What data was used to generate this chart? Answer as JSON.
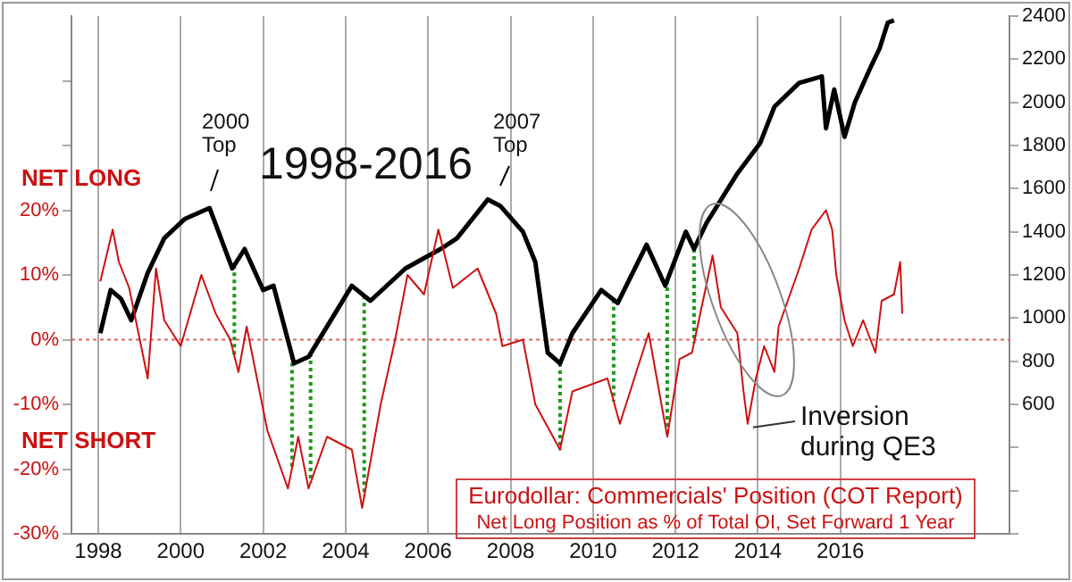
{
  "chart_data": {
    "type": "line",
    "title": "1998-2016",
    "annotations": [
      "2000 Top",
      "2007 Top",
      "NET LONG",
      "NET SHORT",
      {
        "text": "Inversion during QE3",
        "x": 2013.75,
        "y": -13
      },
      "Eurodollar: Commercials' Position (COT Report)",
      "Net Long Position as % of Total OI, Set Forward 1 Year"
    ],
    "xlim": [
      1997.35,
      2020.1
    ],
    "xticks": [
      1998,
      2000,
      2002,
      2004,
      2006,
      2008,
      2010,
      2012,
      2014,
      2016
    ],
    "ylim": [
      -30,
      50
    ],
    "yticks": [
      {
        "value": -30,
        "label": "-30%"
      },
      {
        "value": -20,
        "label": "-20%"
      },
      {
        "value": -10,
        "label": "-10%"
      },
      {
        "value": 0,
        "label": "0%"
      },
      {
        "value": 10,
        "label": "10%"
      },
      {
        "value": 20,
        "label": "20%"
      },
      {
        "value": 30,
        "label": null
      },
      {
        "value": 40,
        "label": null
      }
    ],
    "y2lim": [
      0,
      2400
    ],
    "y2ticks": [
      {
        "value": 0,
        "label": null
      },
      {
        "value": 200,
        "label": null
      },
      {
        "value": 400,
        "label": null
      },
      600,
      800,
      1000,
      1200,
      1400,
      1600,
      1800,
      2000,
      2200,
      2400
    ],
    "grid": "x",
    "legend": false,
    "marker": "none",
    "line_style": "solid",
    "ref_lines": [
      {
        "axis": "y",
        "value": 0,
        "color": "#e06060",
        "line_style": "dotted"
      },
      {
        "axis": "x",
        "value": 2001.3,
        "color": "#1a9a1a",
        "line_style": "dotted"
      },
      {
        "axis": "x",
        "value": 2002.7,
        "color": "#1a9a1a",
        "line_style": "dotted"
      },
      {
        "axis": "x",
        "value": 2003.15,
        "color": "#1a9a1a",
        "line_style": "dotted"
      },
      {
        "axis": "x",
        "value": 2004.45,
        "color": "#1a9a1a",
        "line_style": "dotted"
      },
      {
        "axis": "x",
        "value": 2009.2,
        "color": "#1a9a1a",
        "line_style": "dotted"
      },
      {
        "axis": "x",
        "value": 2010.5,
        "color": "#1a9a1a",
        "line_style": "dotted"
      },
      {
        "axis": "x",
        "value": 2011.8,
        "color": "#1a9a1a",
        "line_style": "dotted"
      },
      {
        "axis": "x",
        "value": 2012.45,
        "color": "#1a9a1a",
        "line_style": "dotted"
      }
    ],
    "series": [
      {
        "color": "#cc1111",
        "x": [
          1998.05,
          1998.35,
          1998.5,
          1998.75,
          1999.2,
          1999.4,
          1999.6,
          2000.0,
          2000.5,
          2000.85,
          2001.2,
          2001.4,
          2001.6,
          2002.1,
          2002.6,
          2002.85,
          2003.1,
          2003.55,
          2004.15,
          2004.4,
          2004.85,
          2005.2,
          2005.5,
          2005.9,
          2006.25,
          2006.6,
          2007.2,
          2007.65,
          2007.8,
          2008.3,
          2008.6,
          2009.2,
          2009.5,
          2010.35,
          2010.65,
          2011.35,
          2011.8,
          2012.1,
          2012.4,
          2012.9,
          2013.1,
          2013.3,
          2013.5,
          2013.65,
          2013.75,
          2013.95,
          2014.15,
          2014.4,
          2014.5,
          2015.0,
          2015.3,
          2015.65,
          2015.8,
          2015.9,
          2016.1,
          2016.3,
          2016.55,
          2016.85,
          2017.0,
          2017.3,
          2017.45,
          2017.5
        ],
        "values": [
          9,
          17,
          12,
          8,
          -6,
          11,
          3,
          -1,
          10,
          4,
          0,
          -5,
          2,
          -14,
          -23,
          -15,
          -23,
          -15,
          -17,
          -26,
          -10,
          0,
          10,
          7,
          17,
          8,
          11,
          4,
          -1,
          0,
          -10,
          -17,
          -8,
          -6,
          -13,
          1,
          -15,
          -3,
          -2,
          13,
          5,
          3,
          1,
          -8,
          -13,
          -6,
          -1,
          -5,
          2,
          11,
          17,
          20,
          17,
          10,
          3,
          -1,
          3,
          -2,
          6,
          7,
          12,
          4
        ]
      },
      {
        "color": "#000000",
        "axis": "y2",
        "x": [
          1998.05,
          1998.3,
          1998.55,
          1998.8,
          1999.2,
          1999.6,
          2000.1,
          2000.7,
          2001.25,
          2001.55,
          2002.0,
          2002.25,
          2002.75,
          2003.1,
          2004.15,
          2004.6,
          2005.45,
          2006.3,
          2006.7,
          2007.45,
          2007.75,
          2008.3,
          2008.6,
          2008.9,
          2009.2,
          2009.5,
          2010.2,
          2010.6,
          2011.3,
          2011.75,
          2012.25,
          2012.45,
          2012.75,
          2013.5,
          2014.05,
          2014.4,
          2015.0,
          2015.55,
          2015.65,
          2015.85,
          2016.1,
          2016.35,
          2016.75,
          2016.95,
          2017.15,
          2017.3
        ],
        "values": [
          930,
          1130,
          1090,
          990,
          1210,
          1370,
          1460,
          1510,
          1230,
          1320,
          1130,
          1150,
          790,
          820,
          1150,
          1080,
          1230,
          1320,
          1370,
          1550,
          1520,
          1400,
          1260,
          840,
          790,
          930,
          1130,
          1070,
          1340,
          1150,
          1400,
          1320,
          1440,
          1670,
          1810,
          1980,
          2090,
          2120,
          1880,
          2060,
          1840,
          2000,
          2170,
          2250,
          2370,
          2380
        ]
      }
    ]
  }
}
